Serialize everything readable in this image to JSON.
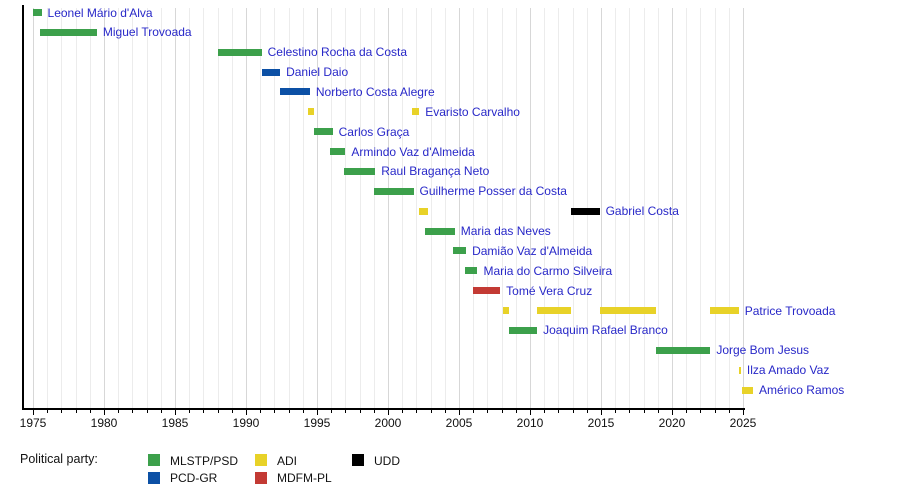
{
  "chart_data": {
    "type": "timeline",
    "title": "",
    "x_axis": {
      "start": 1975,
      "end": 2025,
      "minor_tick_step": 1,
      "major_tick_step": 5,
      "tick_labels": [
        "1975",
        "1980",
        "1985",
        "1990",
        "1995",
        "2000",
        "2005",
        "2010",
        "2015",
        "2020",
        "2025"
      ]
    },
    "party_colors": {
      "MLSTP/PSD": "#3ca04b",
      "PCD-GR": "#0c50a5",
      "ADI": "#e8d228",
      "MDFM-PL": "#c33a34",
      "UDD": "#000000"
    },
    "people": [
      {
        "name": "Leonel Mário d'Alva",
        "terms": [
          {
            "start": 1975.0,
            "end": 1975.6,
            "party": "MLSTP/PSD"
          }
        ]
      },
      {
        "name": "Miguel Trovoada",
        "terms": [
          {
            "start": 1975.5,
            "end": 1979.5,
            "party": "MLSTP/PSD"
          }
        ]
      },
      {
        "name": "Celestino Rocha da Costa",
        "terms": [
          {
            "start": 1988.0,
            "end": 1991.1,
            "party": "MLSTP/PSD"
          }
        ]
      },
      {
        "name": "Daniel Daio",
        "terms": [
          {
            "start": 1991.1,
            "end": 1992.4,
            "party": "PCD-GR"
          }
        ]
      },
      {
        "name": "Norberto Costa Alegre",
        "terms": [
          {
            "start": 1992.4,
            "end": 1994.5,
            "party": "PCD-GR"
          }
        ]
      },
      {
        "name": "Evaristo Carvalho",
        "terms": [
          {
            "start": 1994.4,
            "end": 1994.8,
            "party": "ADI"
          },
          {
            "start": 2001.7,
            "end": 2002.2,
            "party": "ADI"
          }
        ]
      },
      {
        "name": "Carlos Graça",
        "terms": [
          {
            "start": 1994.8,
            "end": 1996.1,
            "party": "MLSTP/PSD"
          }
        ]
      },
      {
        "name": "Armindo Vaz d'Almeida",
        "terms": [
          {
            "start": 1995.9,
            "end": 1997.0,
            "party": "MLSTP/PSD"
          }
        ]
      },
      {
        "name": "Raul Bragança Neto",
        "terms": [
          {
            "start": 1996.9,
            "end": 1999.1,
            "party": "MLSTP/PSD"
          }
        ]
      },
      {
        "name": "Guilherme Posser da Costa",
        "terms": [
          {
            "start": 1999.0,
            "end": 2001.8,
            "party": "MLSTP/PSD"
          }
        ]
      },
      {
        "name": "Gabriel Costa",
        "terms": [
          {
            "start": 2002.2,
            "end": 2002.8,
            "party": "ADI"
          },
          {
            "start": 2012.9,
            "end": 2014.9,
            "party": "UDD"
          }
        ]
      },
      {
        "name": "Maria das Neves",
        "terms": [
          {
            "start": 2002.6,
            "end": 2004.7,
            "party": "MLSTP/PSD"
          }
        ]
      },
      {
        "name": "Damião Vaz d'Almeida",
        "terms": [
          {
            "start": 2004.6,
            "end": 2005.5,
            "party": "MLSTP/PSD"
          }
        ]
      },
      {
        "name": "Maria do Carmo Silveira",
        "terms": [
          {
            "start": 2005.4,
            "end": 2006.3,
            "party": "MLSTP/PSD"
          }
        ]
      },
      {
        "name": "Tomé Vera Cruz",
        "terms": [
          {
            "start": 2006.0,
            "end": 2007.9,
            "party": "MDFM-PL"
          }
        ]
      },
      {
        "name": "Patrice Trovoada",
        "terms": [
          {
            "start": 2008.1,
            "end": 2008.5,
            "party": "ADI"
          },
          {
            "start": 2010.5,
            "end": 2012.9,
            "party": "ADI"
          },
          {
            "start": 2014.9,
            "end": 2018.9,
            "party": "ADI"
          },
          {
            "start": 2022.7,
            "end": 2024.7,
            "party": "ADI"
          }
        ]
      },
      {
        "name": "Joaquim Rafael Branco",
        "terms": [
          {
            "start": 2008.5,
            "end": 2010.5,
            "party": "MLSTP/PSD"
          }
        ]
      },
      {
        "name": "Jorge Bom Jesus",
        "terms": [
          {
            "start": 2018.9,
            "end": 2022.7,
            "party": "MLSTP/PSD"
          }
        ]
      },
      {
        "name": "Ilza Amado Vaz",
        "terms": [
          {
            "start": 2024.7,
            "end": 2024.85,
            "party": "ADI"
          }
        ]
      },
      {
        "name": "Américo Ramos",
        "terms": [
          {
            "start": 2024.9,
            "end": 2025.7,
            "party": "ADI"
          }
        ]
      }
    ]
  },
  "legend": {
    "title": "Political party:",
    "rows": [
      [
        "MLSTP/PSD",
        "ADI",
        "UDD"
      ],
      [
        "PCD-GR",
        "MDFM-PL"
      ]
    ]
  },
  "colors": {
    "name_label": "#2828c8",
    "axis": "#000000",
    "grid_minor": "#ececec",
    "grid_major": "#d7d7d7",
    "legend_text": "#111111",
    "background": "#ffffff"
  }
}
